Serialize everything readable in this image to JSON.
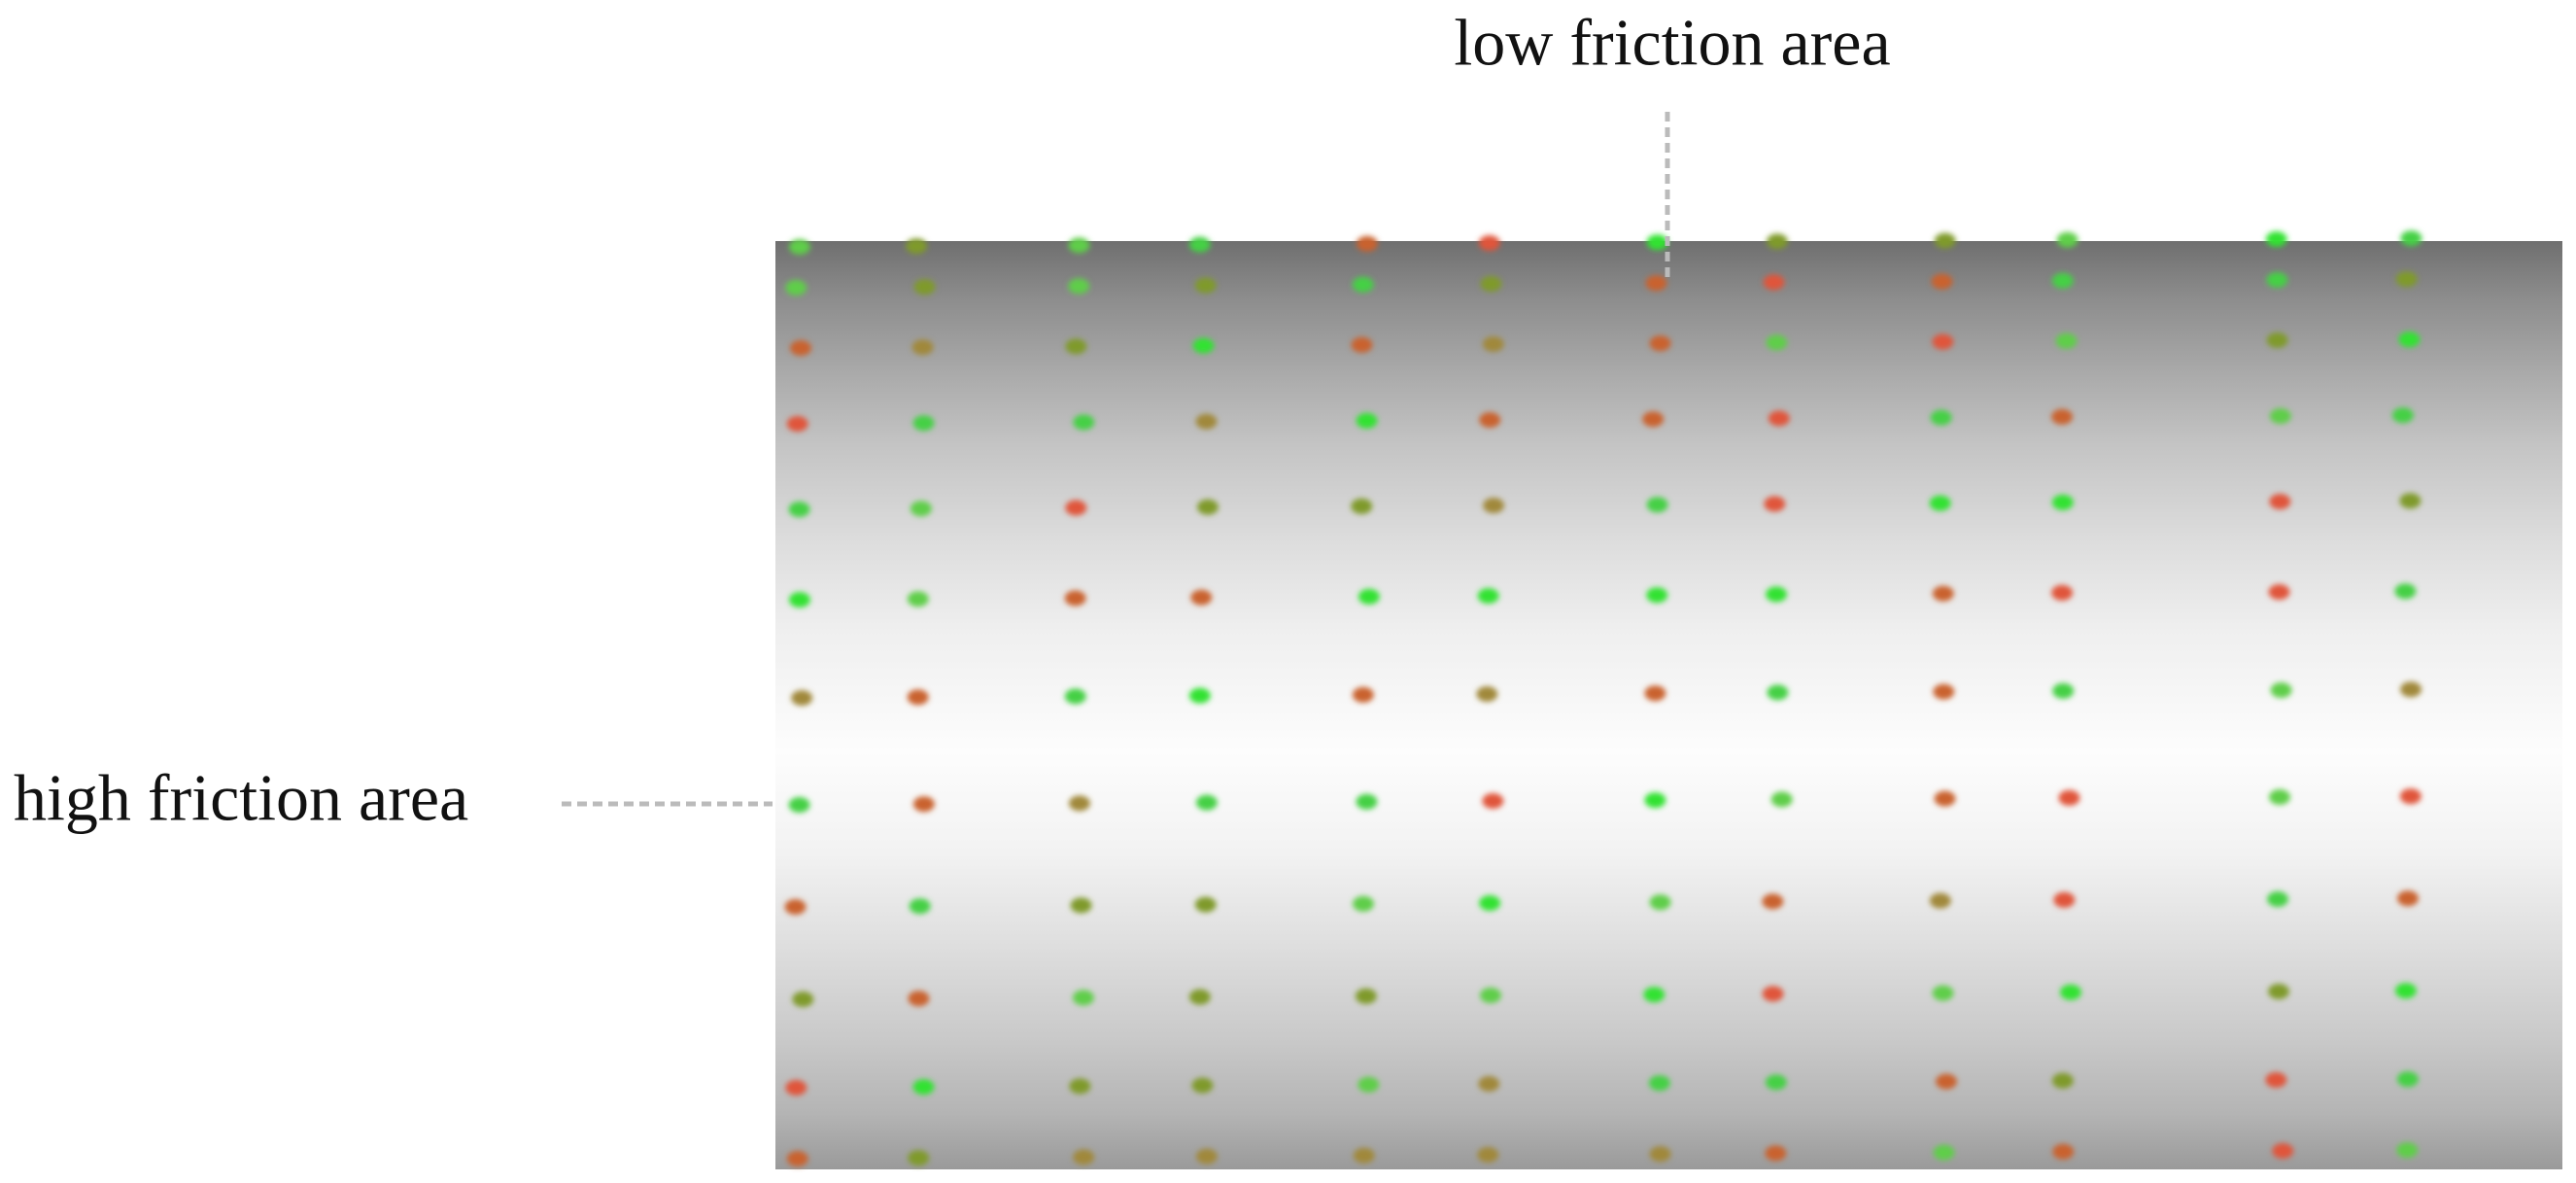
{
  "annotations": [
    {
      "label": "low friction area"
    },
    {
      "label": "high friction area"
    }
  ]
}
